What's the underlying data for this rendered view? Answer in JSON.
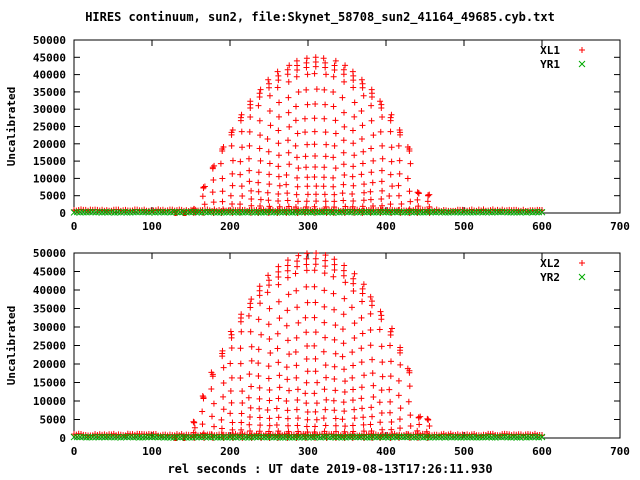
{
  "title": "HIRES continuum, sun2, file:Skynet_58708_sun2_41164_49685.cyb.txt",
  "xlabel": "rel seconds : UT date 2019-08-13T17:26:11.930",
  "colors": {
    "series_red": "#ff0000",
    "series_green": "#00aa00",
    "frame": "#000000"
  },
  "chart_data": [
    {
      "type": "scatter",
      "title": "",
      "xlabel": "",
      "ylabel": "Uncalibrated",
      "xlim": [
        0,
        700
      ],
      "ylim": [
        0,
        50000
      ],
      "xticks": [
        "0",
        "100",
        "200",
        "300",
        "400",
        "500",
        "600",
        "700"
      ],
      "yticks": [
        "0",
        "5000",
        "10000",
        "15000",
        "20000",
        "25000",
        "30000",
        "35000",
        "40000",
        "45000",
        "50000"
      ],
      "grid": false,
      "legend": "top-right",
      "series": [
        {
          "name": "XL1",
          "marker": "plus",
          "color": "#ff0000",
          "envelope": {
            "x_start": 0,
            "x_end": 600,
            "baseline": 800,
            "rise_start": 130,
            "fall_end": 460,
            "peak_x": 310,
            "peak_y": 45000,
            "half_width": 150
          }
        },
        {
          "name": "YR1",
          "marker": "cross",
          "color": "#00aa00",
          "envelope": {
            "x_start": 0,
            "x_end": 600,
            "baseline": 150
          }
        }
      ]
    },
    {
      "type": "scatter",
      "title": "",
      "xlabel": "rel seconds : UT date 2019-08-13T17:26:11.930",
      "ylabel": "Uncalibrated",
      "xlim": [
        0,
        700
      ],
      "ylim": [
        0,
        50000
      ],
      "xticks": [
        "0",
        "100",
        "200",
        "300",
        "400",
        "500",
        "600",
        "700"
      ],
      "yticks": [
        "0",
        "5000",
        "10000",
        "15000",
        "20000",
        "25000",
        "30000",
        "35000",
        "40000",
        "45000",
        "50000"
      ],
      "grid": false,
      "legend": "top-right",
      "series": [
        {
          "name": "XL2",
          "marker": "plus",
          "color": "#ff0000",
          "envelope": {
            "x_start": 0,
            "x_end": 600,
            "baseline": 900,
            "rise_start": 130,
            "fall_end": 460,
            "peak_x": 305,
            "peak_y": 50000,
            "half_width": 150
          }
        },
        {
          "name": "YR2",
          "marker": "cross",
          "color": "#00aa00",
          "envelope": {
            "x_start": 0,
            "x_end": 600,
            "baseline": 150
          }
        }
      ]
    }
  ]
}
